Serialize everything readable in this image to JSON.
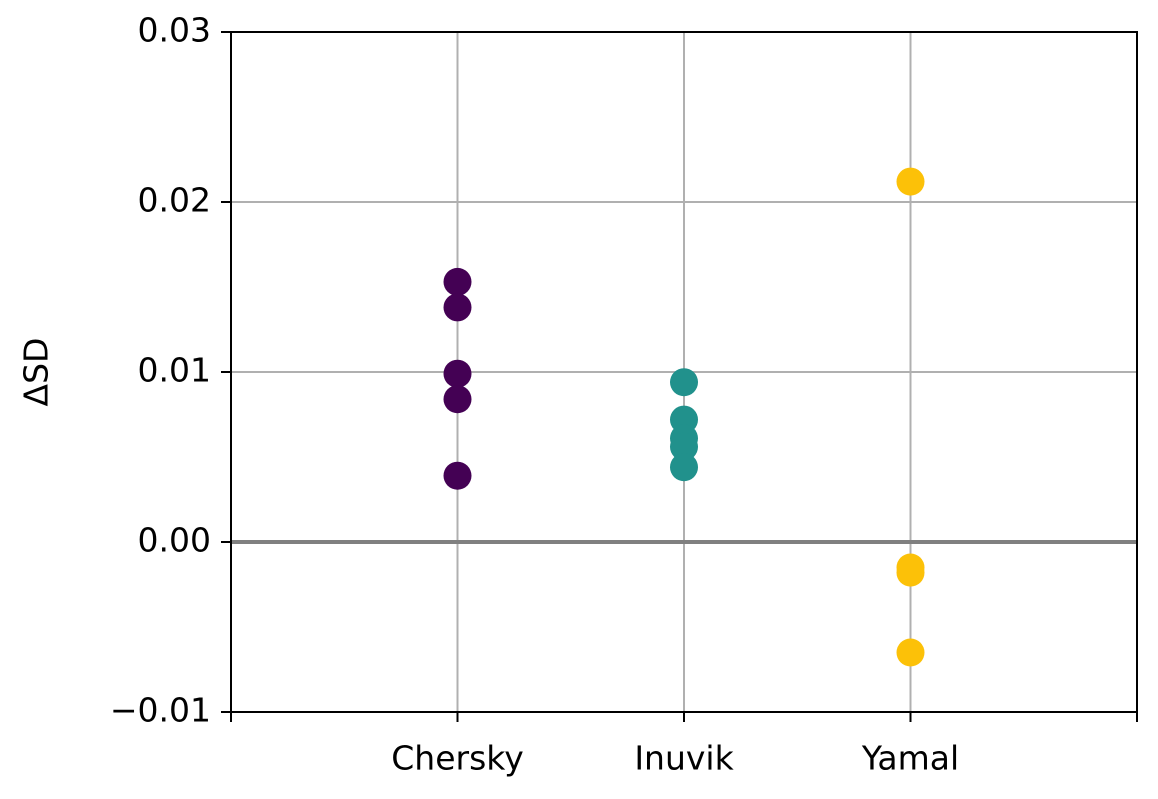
{
  "chart_data": {
    "type": "strip",
    "y_label": "ΔSD",
    "categories": [
      null,
      "Chersky",
      "Inuvik",
      "Yamal",
      null
    ],
    "values": [
      null,
      [
        0.0153,
        0.0138,
        0.0099,
        0.0084,
        0.0039
      ],
      [
        0.0094,
        0.0072,
        0.0061,
        0.0056,
        0.0044
      ],
      [
        0.0212,
        -0.0015,
        -0.0018,
        -0.0065
      ],
      null
    ],
    "colors": [
      null,
      "#440154",
      "#21918c",
      "#fcc108",
      null
    ],
    "ylim": [
      -0.01,
      0.03
    ],
    "yticks": [
      0.03,
      0.02,
      0.01,
      {
        "value": 0,
        "label": "0.00"
      },
      {
        "value": -0.01,
        "label": "−0.01"
      }
    ],
    "reference_line": 0,
    "grid": true
  }
}
